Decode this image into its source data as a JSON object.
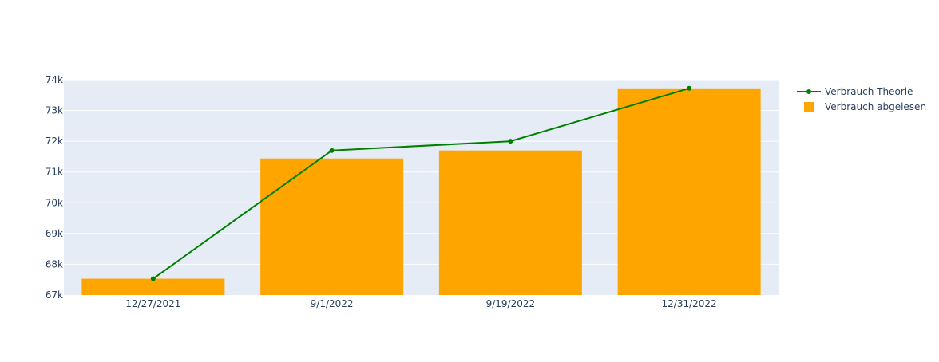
{
  "chart_data": {
    "type": "bar",
    "categories": [
      "12/27/2021",
      "9/1/2022",
      "9/19/2022",
      "12/31/2022"
    ],
    "series": [
      {
        "name": "Verbrauch Theorie",
        "type": "line",
        "color": "#008000",
        "values": [
          67530,
          71700,
          72000,
          73720
        ]
      },
      {
        "name": "Verbrauch abgelesen",
        "type": "bar",
        "color": "#FFA500",
        "values": [
          67530,
          71440,
          71700,
          73720
        ]
      }
    ],
    "y_ticks": [
      "67k",
      "68k",
      "69k",
      "70k",
      "71k",
      "72k",
      "73k",
      "74k"
    ],
    "ylim": [
      67000,
      74000
    ],
    "grid": true,
    "plot_background": "#E5ECF6",
    "legend_position": "top-right"
  }
}
